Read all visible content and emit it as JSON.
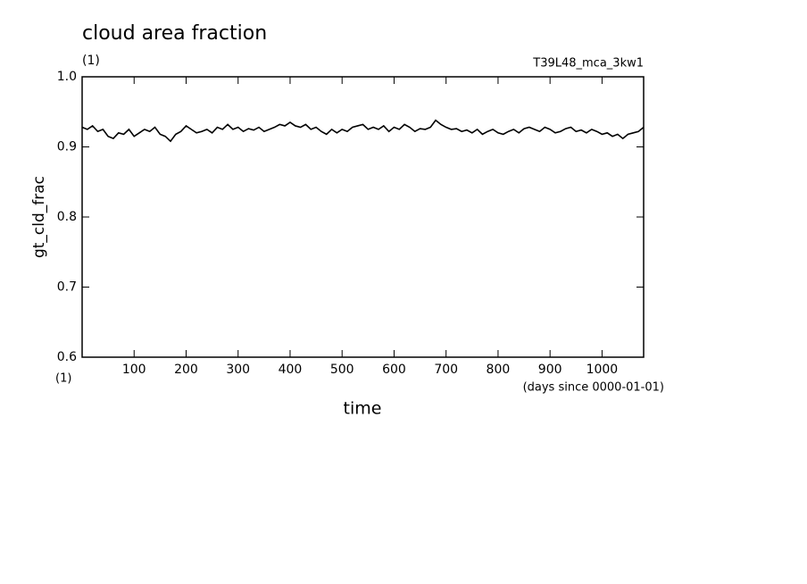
{
  "chart_data": {
    "type": "line",
    "title": "cloud area fraction",
    "subtitle": "(1)",
    "annotation": "T39L48_mca_3kw1",
    "y_label": "gt_cld_frac",
    "x_unit_left": "(1)",
    "x_unit": "(days since 0000-01-01)",
    "x_label": "time",
    "xlim": [
      0,
      1080
    ],
    "ylim": [
      0.6,
      1
    ],
    "xticks": [
      100,
      200,
      300,
      400,
      500,
      600,
      700,
      800,
      900,
      1000
    ],
    "yticks": [
      0.6,
      0.7,
      0.8,
      0.9,
      {
        "value": 1,
        "label": "1.0"
      }
    ],
    "x": [
      0,
      10,
      20,
      30,
      40,
      50,
      60,
      70,
      80,
      90,
      100,
      110,
      120,
      130,
      140,
      150,
      160,
      170,
      180,
      190,
      200,
      210,
      220,
      230,
      240,
      250,
      260,
      270,
      280,
      290,
      300,
      310,
      320,
      330,
      340,
      350,
      360,
      370,
      380,
      390,
      400,
      410,
      420,
      430,
      440,
      450,
      460,
      470,
      480,
      490,
      500,
      510,
      520,
      530,
      540,
      550,
      560,
      570,
      580,
      590,
      600,
      610,
      620,
      630,
      640,
      650,
      660,
      670,
      680,
      690,
      700,
      710,
      720,
      730,
      740,
      750,
      760,
      770,
      780,
      790,
      800,
      810,
      820,
      830,
      840,
      850,
      860,
      870,
      880,
      890,
      900,
      910,
      920,
      930,
      940,
      950,
      960,
      970,
      980,
      990,
      1000,
      1010,
      1020,
      1030,
      1040,
      1050,
      1060,
      1070,
      1080
    ],
    "series": [
      {
        "color": "#000000",
        "values": [
          0.928,
          0.925,
          0.93,
          0.922,
          0.925,
          0.915,
          0.912,
          0.92,
          0.918,
          0.925,
          0.915,
          0.92,
          0.925,
          0.922,
          0.928,
          0.918,
          0.915,
          0.908,
          0.918,
          0.922,
          0.93,
          0.925,
          0.92,
          0.922,
          0.925,
          0.92,
          0.928,
          0.925,
          0.932,
          0.925,
          0.928,
          0.922,
          0.926,
          0.924,
          0.928,
          0.922,
          0.925,
          0.928,
          0.932,
          0.93,
          0.935,
          0.93,
          0.928,
          0.932,
          0.925,
          0.928,
          0.922,
          0.918,
          0.925,
          0.92,
          0.925,
          0.922,
          0.928,
          0.93,
          0.932,
          0.925,
          0.928,
          0.925,
          0.93,
          0.922,
          0.928,
          0.925,
          0.932,
          0.928,
          0.922,
          0.926,
          0.925,
          0.928,
          0.938,
          0.932,
          0.928,
          0.925,
          0.926,
          0.922,
          0.924,
          0.92,
          0.925,
          0.918,
          0.922,
          0.925,
          0.92,
          0.918,
          0.922,
          0.925,
          0.92,
          0.926,
          0.928,
          0.925,
          0.922,
          0.928,
          0.925,
          0.92,
          0.922,
          0.926,
          0.928,
          0.922,
          0.924,
          0.92,
          0.925,
          0.922,
          0.918,
          0.92,
          0.915,
          0.918,
          0.912,
          0.918,
          0.92,
          0.922,
          0.928
        ]
      }
    ]
  }
}
